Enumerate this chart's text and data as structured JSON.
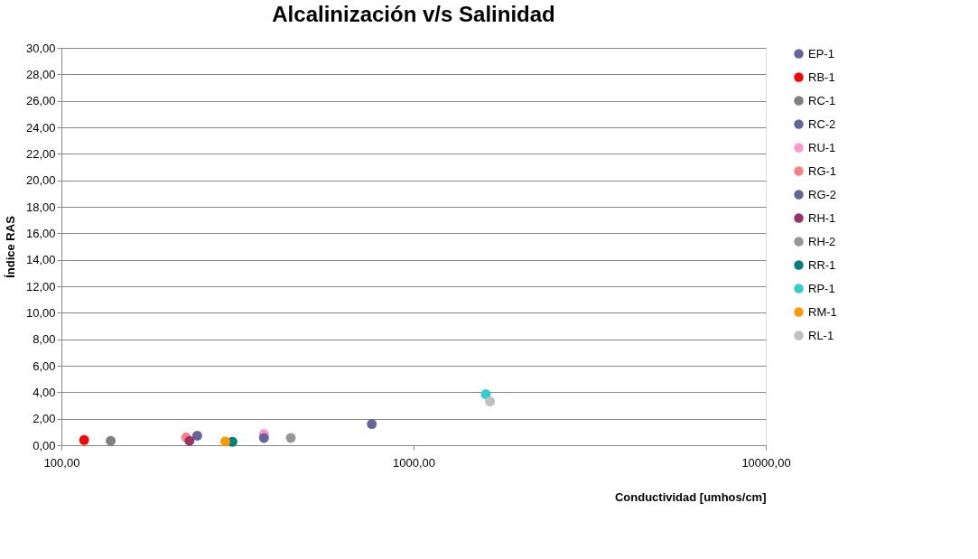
{
  "chart_data": {
    "type": "scatter",
    "title": "Alcalinización v/s Salinidad",
    "xlabel": "Conductividad [umhos/cm]",
    "ylabel": "Índice RAS",
    "series": [
      {
        "name": "EP-1",
        "color": "#65659b",
        "x": [
          761
        ],
        "values": [
          1.6
        ]
      },
      {
        "name": "RB-1",
        "color": "#ff0000",
        "x": [
          116
        ],
        "values": [
          0.39
        ]
      },
      {
        "name": "RC-1",
        "color": "#7f7f7f",
        "x": [
          138
        ],
        "values": [
          0.33
        ]
      },
      {
        "name": "RC-2",
        "color": "#65659b",
        "x": [
          243
        ],
        "values": [
          0.72
        ]
      },
      {
        "name": "RU-1",
        "color": "#ff99cc",
        "x": [
          376
        ],
        "values": [
          0.85
        ]
      },
      {
        "name": "RG-1",
        "color": "#ff8080",
        "x": [
          226
        ],
        "values": [
          0.59
        ]
      },
      {
        "name": "RG-2",
        "color": "#65659b",
        "x": [
          376
        ],
        "values": [
          0.55
        ]
      },
      {
        "name": "RH-1",
        "color": "#993366",
        "x": [
          231
        ],
        "values": [
          0.33
        ]
      },
      {
        "name": "RH-2",
        "color": "#969696",
        "x": [
          448
        ],
        "values": [
          0.55
        ]
      },
      {
        "name": "RR-1",
        "color": "#008080",
        "x": [
          306
        ],
        "values": [
          0.26
        ]
      },
      {
        "name": "RP-1",
        "color": "#33cccc",
        "x": [
          1604
        ],
        "values": [
          3.85
        ]
      },
      {
        "name": "RM-1",
        "color": "#ff9900",
        "x": [
          292
        ],
        "values": [
          0.28
        ]
      },
      {
        "name": "RL-1",
        "color": "#c0c0c0",
        "x": [
          1648
        ],
        "values": [
          3.3
        ]
      }
    ],
    "log": "x",
    "xlim": [
      100,
      10000
    ],
    "xticks": [
      {
        "value": 100,
        "label": "100,00"
      },
      {
        "value": 1000,
        "label": "1000,00"
      },
      {
        "value": 10000,
        "label": "10000,00"
      }
    ],
    "ylim": [
      0,
      30
    ],
    "yticks": [
      {
        "value": 0,
        "label": "0,00"
      },
      {
        "value": 2,
        "label": "2,00"
      },
      {
        "value": 4,
        "label": "4,00"
      },
      {
        "value": 6,
        "label": "6,00"
      },
      {
        "value": 8,
        "label": "8,00"
      },
      {
        "value": 10,
        "label": "10,00"
      },
      {
        "value": 12,
        "label": "12,00"
      },
      {
        "value": 14,
        "label": "14,00"
      },
      {
        "value": 16,
        "label": "16,00"
      },
      {
        "value": 18,
        "label": "18,00"
      },
      {
        "value": 20,
        "label": "20,00"
      },
      {
        "value": 22,
        "label": "22,00"
      },
      {
        "value": 24,
        "label": "24,00"
      },
      {
        "value": 26,
        "label": "26,00"
      },
      {
        "value": 28,
        "label": "28,00"
      },
      {
        "value": 30,
        "label": "30,00"
      }
    ],
    "grid": "y",
    "legend": "right",
    "marker": "circle"
  }
}
